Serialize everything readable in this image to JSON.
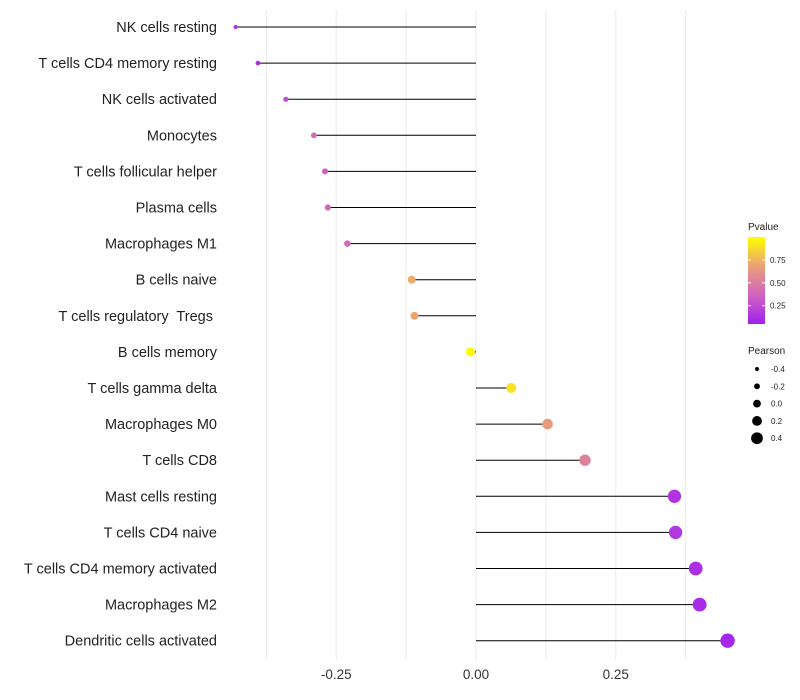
{
  "chart_data": {
    "type": "lollipop",
    "title": "",
    "xlabel": "",
    "ylabel": "",
    "xlim": [
      -0.44,
      0.44
    ],
    "x_ticks": [
      -0.25,
      0.0,
      0.25
    ],
    "x_tick_labels": [
      "-0.25",
      "0.00",
      "0.25"
    ],
    "grid": true,
    "categories": [
      "NK cells resting",
      "T cells CD4 memory resting",
      "NK cells activated",
      "Monocytes",
      "T cells follicular helper",
      "Plasma cells",
      "Macrophages M1",
      "B cells naive",
      "T cells regulatory  Tregs ",
      "B cells memory",
      "T cells gamma delta",
      "Macrophages M0",
      "T cells CD8",
      "Mast cells resting",
      "T cells CD4 naive",
      "T cells CD4 memory activated",
      "Macrophages M2",
      "Dendritic cells activated"
    ],
    "pearson": [
      -0.43,
      -0.39,
      -0.34,
      -0.29,
      -0.27,
      -0.265,
      -0.23,
      -0.115,
      -0.11,
      -0.01,
      0.063,
      0.128,
      0.195,
      0.355,
      0.357,
      0.393,
      0.4,
      0.45
    ],
    "pvalue": [
      0.15,
      0.1,
      0.28,
      0.42,
      0.35,
      0.38,
      0.4,
      0.72,
      0.7,
      0.99,
      0.9,
      0.66,
      0.52,
      0.15,
      0.16,
      0.12,
      0.1,
      0.08
    ],
    "legend_pvalue": {
      "title": "Pvalue",
      "ticks": [
        0.25,
        0.5,
        0.75
      ],
      "tick_labels": [
        "0.25",
        "0.50",
        "0.75"
      ],
      "range": [
        0.05,
        1.0
      ],
      "colors": [
        "#a020f0",
        "#d163c0",
        "#eba077",
        "#ffff00"
      ],
      "position": "right"
    },
    "legend_pearson": {
      "title": "Pearson",
      "values": [
        -0.4,
        -0.2,
        0.0,
        0.2,
        0.4
      ],
      "labels": [
        "-0.4",
        "-0.2",
        "0.0",
        "0.2",
        "0.4"
      ],
      "position": "right"
    }
  }
}
